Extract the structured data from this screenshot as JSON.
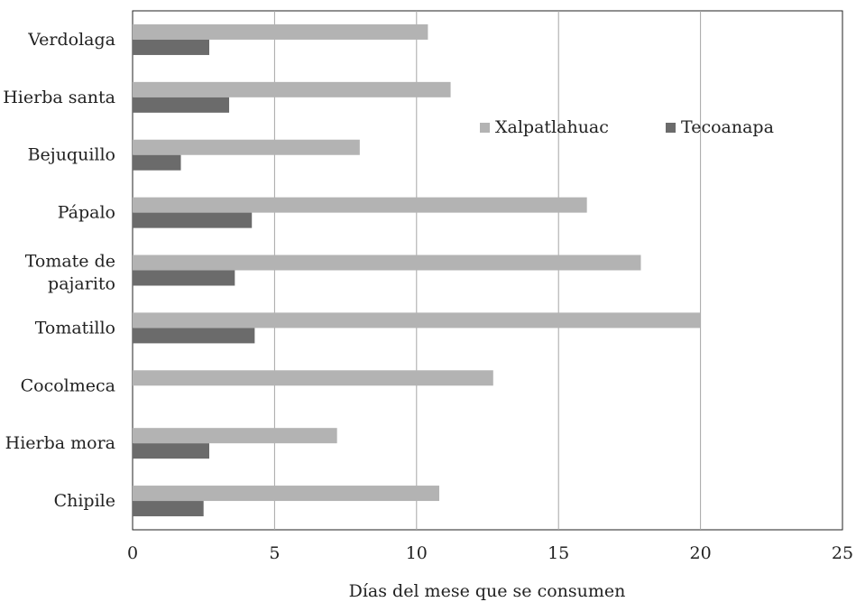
{
  "chart_data": {
    "type": "bar",
    "orientation": "horizontal",
    "categories": [
      "Verdolaga",
      "Hierba santa",
      "Bejuquillo",
      "Pápalo",
      "Tomate de pajarito",
      "Tomatillo",
      "Cocolmeca",
      "Hierba mora",
      "Chipile"
    ],
    "series": [
      {
        "name": "Xalpatlahuac",
        "color": "#b3b3b3",
        "values": [
          10.4,
          11.2,
          8.0,
          16.0,
          17.9,
          20.0,
          12.7,
          7.2,
          10.8
        ]
      },
      {
        "name": "Tecoanapa",
        "color": "#6b6b6b",
        "values": [
          2.7,
          3.4,
          1.7,
          4.2,
          3.6,
          4.3,
          0,
          2.7,
          2.5
        ]
      }
    ],
    "xlabel": "Días del mese que se consumen",
    "ylabel": "",
    "xlim": [
      0,
      25
    ],
    "xticks": [
      0,
      5,
      10,
      15,
      20,
      25
    ],
    "grid": "vertical",
    "legend_position": "top-right inside"
  }
}
